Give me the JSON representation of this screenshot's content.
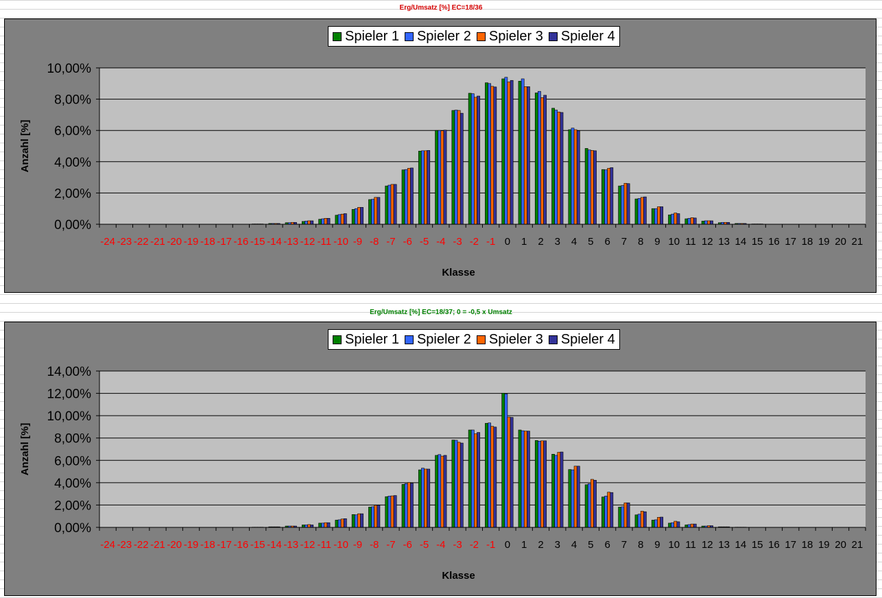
{
  "sheet": {
    "title_top": "Erg/Umsatz [%] EC=18/36",
    "title_top_color": "#d40000",
    "title_bottom": "Erg/Umsatz [%] EC=18/37; 0 = -0,5 x Umsatz",
    "title_bottom_color": "#008000"
  },
  "colors": {
    "panel": "#808080",
    "plot_area": "#c0c0c0",
    "negative_tick": "#ff0000",
    "positive_tick": "#000000"
  },
  "chart_data": [
    {
      "type": "bar",
      "title": "",
      "xlabel": "Klasse",
      "ylabel": "Anzahl [%]",
      "ylim": [
        0,
        10
      ],
      "yticks": [
        "0,00%",
        "2,00%",
        "4,00%",
        "6,00%",
        "8,00%",
        "10,00%"
      ],
      "grid": true,
      "legend_position": "top-center",
      "categories": [
        "-24",
        "-23",
        "-22",
        "-21",
        "-20",
        "-19",
        "-18",
        "-17",
        "-16",
        "-15",
        "-14",
        "-13",
        "-12",
        "-11",
        "-10",
        "-9",
        "-8",
        "-7",
        "-6",
        "-5",
        "-4",
        "-3",
        "-2",
        "-1",
        "0",
        "1",
        "2",
        "3",
        "4",
        "5",
        "6",
        "7",
        "8",
        "9",
        "10",
        "11",
        "12",
        "13",
        "14",
        "15",
        "16",
        "17",
        "18",
        "19",
        "20",
        "21"
      ],
      "series": [
        {
          "name": "Spieler 1",
          "color": "#008000",
          "values": [
            0,
            0,
            0,
            0,
            0,
            0,
            0,
            0,
            0,
            0.02,
            0.05,
            0.1,
            0.18,
            0.32,
            0.58,
            0.95,
            1.58,
            2.45,
            3.48,
            4.68,
            6.0,
            7.28,
            8.38,
            9.05,
            9.3,
            9.15,
            8.4,
            7.42,
            6.05,
            4.85,
            3.5,
            2.45,
            1.62,
            1.0,
            0.6,
            0.35,
            0.2,
            0.1,
            0.05,
            0.02,
            0,
            0,
            0,
            0,
            0,
            0
          ]
        },
        {
          "name": "Spieler 2",
          "color": "#3366ff",
          "values": [
            0,
            0,
            0,
            0,
            0,
            0,
            0,
            0,
            0,
            0.02,
            0.05,
            0.1,
            0.2,
            0.35,
            0.62,
            1.0,
            1.6,
            2.5,
            3.5,
            4.7,
            6.0,
            7.3,
            8.35,
            9.0,
            9.4,
            9.3,
            8.5,
            7.3,
            6.15,
            4.75,
            3.48,
            2.48,
            1.65,
            1.0,
            0.65,
            0.38,
            0.22,
            0.12,
            0.05,
            0.02,
            0,
            0,
            0,
            0,
            0,
            0
          ]
        },
        {
          "name": "Spieler 3",
          "color": "#ff6600",
          "values": [
            0,
            0,
            0,
            0,
            0,
            0,
            0,
            0,
            0,
            0.02,
            0.05,
            0.12,
            0.22,
            0.38,
            0.65,
            1.08,
            1.72,
            2.55,
            3.58,
            4.7,
            5.98,
            7.28,
            8.12,
            8.82,
            9.1,
            8.8,
            8.1,
            7.18,
            6.05,
            4.72,
            3.58,
            2.62,
            1.72,
            1.12,
            0.72,
            0.42,
            0.22,
            0.12,
            0.05,
            0.02,
            0,
            0,
            0,
            0,
            0,
            0
          ]
        },
        {
          "name": "Spieler 4",
          "color": "#333399",
          "values": [
            0,
            0,
            0,
            0,
            0,
            0,
            0,
            0,
            0,
            0.02,
            0.05,
            0.12,
            0.22,
            0.38,
            0.68,
            1.08,
            1.72,
            2.55,
            3.6,
            4.72,
            6.02,
            7.1,
            8.2,
            8.78,
            9.2,
            8.8,
            8.25,
            7.15,
            5.98,
            4.7,
            3.62,
            2.6,
            1.75,
            1.12,
            0.68,
            0.4,
            0.22,
            0.12,
            0.05,
            0.02,
            0,
            0,
            0,
            0,
            0,
            0
          ]
        }
      ]
    },
    {
      "type": "bar",
      "title": "",
      "xlabel": "Klasse",
      "ylabel": "Anzahl [%]",
      "ylim": [
        0,
        14
      ],
      "yticks": [
        "0,00%",
        "2,00%",
        "4,00%",
        "6,00%",
        "8,00%",
        "10,00%",
        "12,00%",
        "14,00%"
      ],
      "grid": true,
      "legend_position": "top-center",
      "categories": [
        "-24",
        "-23",
        "-22",
        "-21",
        "-20",
        "-19",
        "-18",
        "-17",
        "-16",
        "-15",
        "-14",
        "-13",
        "-12",
        "-11",
        "-10",
        "-9",
        "-8",
        "-7",
        "-6",
        "-5",
        "-4",
        "-3",
        "-2",
        "-1",
        "0",
        "1",
        "2",
        "3",
        "4",
        "5",
        "6",
        "7",
        "8",
        "9",
        "10",
        "11",
        "12",
        "13",
        "14",
        "15",
        "16",
        "17",
        "18",
        "19",
        "20",
        "21"
      ],
      "series": [
        {
          "name": "Spieler 1",
          "color": "#008000",
          "values": [
            0,
            0,
            0,
            0,
            0,
            0,
            0,
            0,
            0,
            0.02,
            0.05,
            0.12,
            0.22,
            0.38,
            0.65,
            1.15,
            1.82,
            2.75,
            3.85,
            5.15,
            6.45,
            7.82,
            8.72,
            9.32,
            12.02,
            8.72,
            7.78,
            6.55,
            5.18,
            3.82,
            2.72,
            1.82,
            1.12,
            0.65,
            0.38,
            0.22,
            0.12,
            0.05,
            0.02,
            0,
            0,
            0,
            0,
            0,
            0,
            0
          ]
        },
        {
          "name": "Spieler 2",
          "color": "#3366ff",
          "values": [
            0,
            0,
            0,
            0,
            0,
            0,
            0,
            0,
            0,
            0.02,
            0.05,
            0.12,
            0.22,
            0.38,
            0.68,
            1.12,
            1.85,
            2.8,
            3.92,
            5.3,
            6.52,
            7.8,
            8.72,
            9.35,
            11.95,
            8.65,
            7.72,
            6.45,
            5.15,
            3.9,
            2.8,
            1.85,
            1.18,
            0.68,
            0.42,
            0.25,
            0.12,
            0.05,
            0.02,
            0,
            0,
            0,
            0,
            0,
            0,
            0
          ]
        },
        {
          "name": "Spieler 3",
          "color": "#ff6600",
          "values": [
            0,
            0,
            0,
            0,
            0,
            0,
            0,
            0,
            0,
            0.02,
            0.05,
            0.12,
            0.25,
            0.42,
            0.75,
            1.22,
            1.98,
            2.82,
            4.02,
            5.22,
            6.38,
            7.62,
            8.38,
            9.05,
            9.88,
            8.62,
            7.75,
            6.72,
            5.48,
            4.3,
            3.15,
            2.2,
            1.45,
            0.9,
            0.55,
            0.3,
            0.15,
            0.05,
            0.02,
            0,
            0,
            0,
            0,
            0,
            0,
            0
          ]
        },
        {
          "name": "Spieler 4",
          "color": "#333399",
          "values": [
            0,
            0,
            0,
            0,
            0,
            0,
            0,
            0,
            0,
            0.02,
            0.05,
            0.12,
            0.22,
            0.42,
            0.78,
            1.22,
            1.98,
            2.85,
            3.95,
            5.22,
            6.45,
            7.55,
            8.5,
            8.98,
            9.85,
            8.62,
            7.75,
            6.75,
            5.48,
            4.22,
            3.12,
            2.2,
            1.4,
            0.92,
            0.5,
            0.3,
            0.15,
            0.05,
            0.02,
            0,
            0,
            0,
            0,
            0,
            0,
            0
          ]
        }
      ]
    }
  ]
}
